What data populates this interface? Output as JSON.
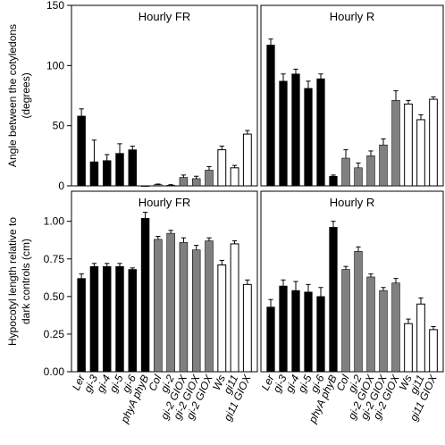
{
  "chart_data": {
    "type": "bar",
    "categories": [
      "Ler",
      "gi-3",
      "gi-4",
      "gi-5",
      "gi-6",
      "phyA phyB",
      "Col",
      "gi-2",
      "gi-2 GIOX",
      "gi-2 GIOX",
      "gi-2 GIOX",
      "Ws",
      "gi11",
      "gi11 GIOX"
    ],
    "bar_groups": [
      "black",
      "black",
      "black",
      "black",
      "black",
      "black",
      "gray",
      "gray",
      "gray",
      "gray",
      "gray",
      "white",
      "white",
      "white"
    ],
    "colors": {
      "black": "#000000",
      "gray": "#808080",
      "white": "#ffffff"
    },
    "panels": [
      {
        "title": "Hourly FR",
        "row": 0,
        "col": 0,
        "ylabel": "Angle between the cotyledons (degrees)",
        "ylim": [
          0,
          150
        ],
        "yticks": [
          "0",
          "50",
          "100",
          "150"
        ],
        "values": [
          58,
          20,
          21,
          27,
          30,
          0,
          1,
          0.5,
          7,
          6,
          13,
          30,
          15,
          43
        ],
        "errors": [
          6,
          18,
          5,
          8,
          3,
          0,
          0.5,
          0.5,
          2,
          2,
          3,
          3,
          2,
          3
        ]
      },
      {
        "title": "Hourly R",
        "row": 0,
        "col": 1,
        "ylim": [
          0,
          150
        ],
        "values": [
          117,
          87,
          93,
          81,
          89,
          8,
          23,
          15,
          25,
          34,
          71,
          68,
          55,
          72
        ],
        "errors": [
          5,
          6,
          4,
          6,
          4,
          1,
          7,
          4,
          4,
          5,
          8,
          3,
          4,
          2
        ]
      },
      {
        "title": "Hourly FR",
        "row": 1,
        "col": 0,
        "ylabel": "Hypocotyl length relative to dark controls (cm)",
        "ylim": [
          0,
          1.2
        ],
        "yticks": [
          "0.00",
          "0.25",
          "0.50",
          "0.75",
          "1.00"
        ],
        "values": [
          0.62,
          0.7,
          0.7,
          0.7,
          0.68,
          1.02,
          0.88,
          0.92,
          0.86,
          0.81,
          0.87,
          0.71,
          0.85,
          0.58
        ],
        "errors": [
          0.03,
          0.02,
          0.02,
          0.02,
          0.01,
          0.04,
          0.02,
          0.02,
          0.03,
          0.03,
          0.02,
          0.03,
          0.02,
          0.03
        ]
      },
      {
        "title": "Hourly R",
        "row": 1,
        "col": 1,
        "ylim": [
          0,
          1.2
        ],
        "values": [
          0.43,
          0.57,
          0.54,
          0.53,
          0.5,
          0.96,
          0.68,
          0.8,
          0.63,
          0.54,
          0.59,
          0.32,
          0.45,
          0.28
        ],
        "errors": [
          0.05,
          0.04,
          0.06,
          0.05,
          0.06,
          0.04,
          0.02,
          0.03,
          0.02,
          0.02,
          0.03,
          0.03,
          0.04,
          0.02
        ]
      }
    ]
  }
}
